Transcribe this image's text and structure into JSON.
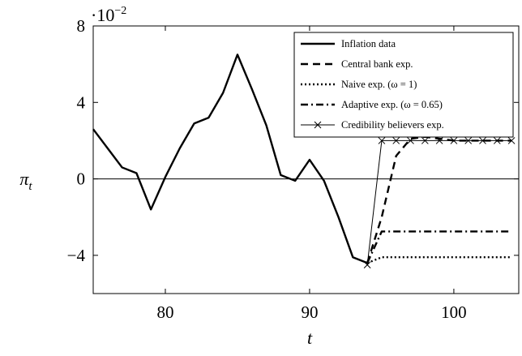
{
  "chart_data": {
    "type": "line",
    "y_label": {
      "symbol": "π",
      "subscript": "t"
    },
    "x_label": "t",
    "y_scale_label": {
      "base": "·10",
      "exponent": "−2"
    },
    "xlim": [
      75,
      104.5
    ],
    "ylim": [
      -6,
      8
    ],
    "xticks": [
      80,
      90,
      100
    ],
    "yticks": [
      {
        "value": -4,
        "label": "−4"
      },
      0,
      4,
      8
    ],
    "hline": 0,
    "legend": "upper right",
    "series": [
      {
        "name": "Inflation data",
        "color": "#000000",
        "style": "solid",
        "width": 2.4,
        "x": [
          75,
          76,
          77,
          78,
          79,
          80,
          81,
          82,
          83,
          84,
          85,
          86,
          87,
          88,
          89,
          90,
          91,
          92,
          93,
          94
        ],
        "values": [
          2.6,
          1.6,
          0.6,
          0.3,
          -1.6,
          0.1,
          1.6,
          2.9,
          3.2,
          4.5,
          6.5,
          4.7,
          2.8,
          0.2,
          -0.1,
          1.0,
          -0.1,
          -2.0,
          -4.1,
          -4.4
        ]
      },
      {
        "name": "Central bank exp.",
        "color": "#000000",
        "style": "dashed",
        "width": 2.4,
        "x": [
          94,
          95,
          96,
          97,
          98,
          99,
          100,
          101,
          102,
          103,
          104
        ],
        "values": [
          -4.4,
          -2.0,
          1.2,
          2.1,
          2.2,
          2.1,
          2.0,
          2.0,
          2.0,
          2.0,
          2.0
        ]
      },
      {
        "name": "Naive exp. (ω = 1)",
        "color": "#000000",
        "style": "dotted",
        "width": 2.4,
        "x": [
          94,
          95,
          96,
          97,
          98,
          99,
          100,
          101,
          102,
          103,
          104
        ],
        "values": [
          -4.4,
          -4.1,
          -4.1,
          -4.1,
          -4.1,
          -4.1,
          -4.1,
          -4.1,
          -4.1,
          -4.1,
          -4.1
        ]
      },
      {
        "name": "Adaptive exp. (ω = 0.65)",
        "color": "#000000",
        "style": "dashdot",
        "width": 2.4,
        "x": [
          94,
          95,
          96,
          97,
          98,
          99,
          100,
          101,
          102,
          103,
          104
        ],
        "values": [
          -4.4,
          -2.75,
          -2.75,
          -2.75,
          -2.75,
          -2.75,
          -2.75,
          -2.75,
          -2.75,
          -2.75,
          -2.75
        ]
      },
      {
        "name": "Credibility believers exp.",
        "color": "#000000",
        "style": "solid",
        "width": 1,
        "marker": "x",
        "x": [
          94,
          95,
          96,
          97,
          98,
          99,
          100,
          101,
          102,
          103,
          104
        ],
        "values": [
          -4.5,
          2.0,
          2.0,
          2.0,
          2.0,
          2.0,
          2.0,
          2.0,
          2.0,
          2.0,
          2.0
        ]
      }
    ]
  }
}
